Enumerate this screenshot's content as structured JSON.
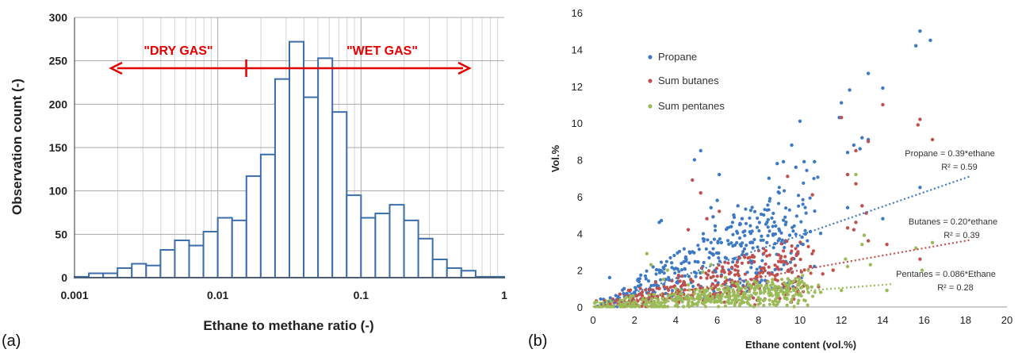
{
  "chart_data": [
    {
      "type": "bar",
      "panel_label": "(a)",
      "xlabel": "Ethane to methane ratio (-)",
      "ylabel": "Observation count (-)",
      "xscale": "log",
      "xlim": [
        0.001,
        1
      ],
      "ylim": [
        0,
        300
      ],
      "x_ticks": [
        0.001,
        0.01,
        0.1,
        1
      ],
      "x_tick_labels": [
        "0.001",
        "0.01",
        "0.1",
        "1"
      ],
      "y_ticks": [
        0,
        50,
        100,
        150,
        200,
        250,
        300
      ],
      "y_tick_labels": [
        "0",
        "50",
        "100",
        "150",
        "200",
        "250",
        "300"
      ],
      "grid": true,
      "bin_edges": [
        0.001,
        0.0012589,
        0.0015849,
        0.0019953,
        0.0025119,
        0.0031623,
        0.0039811,
        0.0050119,
        0.0063096,
        0.0079433,
        0.01,
        0.012589,
        0.015849,
        0.019953,
        0.025119,
        0.031623,
        0.039811,
        0.050119,
        0.063096,
        0.079433,
        0.1,
        0.12589,
        0.15849,
        0.19953,
        0.25119,
        0.31623,
        0.39811,
        0.50119,
        0.63096,
        0.79433,
        1.0
      ],
      "values": [
        1,
        5,
        5,
        11,
        16,
        14,
        32,
        43,
        37,
        53,
        69,
        66,
        117,
        142,
        229,
        272,
        208,
        253,
        191,
        95,
        69,
        74,
        84,
        66,
        45,
        21,
        11,
        8,
        1,
        1
      ],
      "bar_color": "#3b6ea8",
      "annotations": [
        {
          "text": "\"DRY GAS\"",
          "direction": "left",
          "color": "#e30000"
        },
        {
          "text": "\"WET GAS\"",
          "direction": "right",
          "color": "#e30000"
        }
      ],
      "divider_x": 0.0158
    },
    {
      "type": "scatter",
      "panel_label": "(b)",
      "xlabel": "Ethane content (vol.%)",
      "ylabel": "Vol.%",
      "xlim": [
        0,
        20
      ],
      "ylim": [
        0,
        16
      ],
      "x_ticks": [
        0,
        2,
        4,
        6,
        8,
        10,
        12,
        14,
        16,
        18,
        20
      ],
      "x_tick_labels": [
        "0",
        "2",
        "4",
        "6",
        "8",
        "10",
        "12",
        "14",
        "16",
        "18",
        "20"
      ],
      "y_ticks": [
        0,
        2,
        4,
        6,
        8,
        10,
        12,
        14,
        16
      ],
      "y_tick_labels": [
        "0",
        "2",
        "4",
        "6",
        "8",
        "10",
        "12",
        "14",
        "16"
      ],
      "grid": false,
      "legend_placement": "top-left",
      "series": [
        {
          "name": "Propane",
          "color": "#3e79c4",
          "points": [
            [
              15.8,
              15.0
            ],
            [
              16.3,
              14.5
            ],
            [
              15.6,
              14.2
            ],
            [
              14.0,
              11.9
            ],
            [
              13.3,
              12.7
            ],
            [
              12.0,
              11.1
            ],
            [
              12.4,
              11.8
            ],
            [
              11.9,
              10.3
            ],
            [
              10.0,
              10.1
            ],
            [
              9.6,
              8.8
            ],
            [
              12.6,
              8.8
            ],
            [
              12.9,
              8.6
            ],
            [
              12.3,
              8.4
            ],
            [
              13.0,
              9.2
            ],
            [
              13.3,
              9.1
            ],
            [
              10.2,
              7.9
            ],
            [
              10.7,
              7.9
            ],
            [
              9.2,
              7.9
            ],
            [
              9.8,
              7.6
            ],
            [
              8.9,
              7.8
            ],
            [
              8.5,
              7.0
            ],
            [
              5.2,
              8.5
            ],
            [
              4.9,
              8.0
            ],
            [
              6.1,
              7.2
            ],
            [
              6.0,
              5.8
            ],
            [
              5.7,
              5.4
            ],
            [
              6.8,
              5.0
            ],
            [
              7.2,
              4.8
            ],
            [
              3.2,
              4.6
            ],
            [
              3.3,
              4.7
            ],
            [
              5.8,
              4.9
            ],
            [
              9.0,
              3.7
            ],
            [
              9.5,
              3.9
            ],
            [
              10.5,
              4.1
            ],
            [
              8.4,
              3.5
            ],
            [
              8.7,
              3.9
            ],
            [
              10.1,
              3.8
            ],
            [
              7.6,
              3.5
            ],
            [
              15.8,
              6.5
            ],
            [
              14.0,
              4.8
            ],
            [
              12.3,
              5.4
            ],
            [
              11.0,
              4.0
            ],
            [
              7.0,
              5.5
            ],
            [
              6.5,
              4.3
            ],
            [
              4.5,
              2.6
            ],
            [
              4.0,
              2.1
            ],
            [
              3.5,
              1.5
            ],
            [
              2.3,
              1.2
            ],
            [
              1.5,
              1.0
            ],
            [
              0.8,
              1.6
            ],
            [
              2.0,
              0.8
            ],
            [
              3.8,
              2.4
            ],
            [
              5.3,
              2.2
            ],
            [
              5.9,
              4.4
            ],
            [
              4.8,
              3.0
            ],
            [
              6.2,
              3.5
            ],
            [
              9.9,
              2.9
            ],
            [
              10.7,
              2.2
            ]
          ],
          "trendline": {
            "slope": 0.39,
            "x_range": [
              0,
              18.2
            ],
            "label": "Propane = 0.39*ethane",
            "r2_label": "R² = 0.59"
          }
        },
        {
          "name": "Sum butanes",
          "color": "#c0504d",
          "points": [
            [
              15.8,
              10.2
            ],
            [
              15.7,
              9.9
            ],
            [
              16.4,
              9.1
            ],
            [
              14.0,
              11.0
            ],
            [
              12.0,
              10.3
            ],
            [
              12.7,
              8.5
            ],
            [
              13.3,
              9.0
            ],
            [
              12.3,
              7.2
            ],
            [
              12.7,
              6.7
            ],
            [
              9.4,
              7.1
            ],
            [
              10.6,
              6.1
            ],
            [
              4.8,
              6.9
            ],
            [
              5.2,
              6.2
            ],
            [
              6.1,
              5.2
            ],
            [
              4.6,
              4.2
            ],
            [
              5.5,
              4.8
            ],
            [
              9.9,
              3.0
            ],
            [
              9.6,
              2.6
            ],
            [
              10.5,
              2.2
            ],
            [
              12.3,
              4.3
            ],
            [
              12.7,
              4.6
            ],
            [
              13.0,
              5.5
            ],
            [
              13.2,
              5.1
            ],
            [
              12.6,
              4.2
            ],
            [
              14.2,
              3.4
            ],
            [
              15.8,
              2.6
            ],
            [
              11.1,
              1.8
            ],
            [
              9.5,
              1.0
            ],
            [
              8.8,
              1.5
            ],
            [
              7.0,
              1.8
            ],
            [
              6.3,
              2.0
            ],
            [
              5.7,
              1.6
            ],
            [
              4.2,
              1.4
            ],
            [
              3.2,
              1.0
            ],
            [
              2.1,
              0.6
            ],
            [
              1.2,
              0.4
            ],
            [
              1.3,
              0.7
            ],
            [
              10.9,
              1.1
            ],
            [
              11.6,
              2.0
            ],
            [
              13.3,
              3.6
            ]
          ],
          "trendline": {
            "slope": 0.2,
            "x_range": [
              0,
              18.2
            ],
            "label": "Butanes = 0.20*ethane",
            "r2_label": "R² = 0.39"
          }
        },
        {
          "name": "Sum pentanes",
          "color": "#9bbb59",
          "points": [
            [
              12.7,
              7.2
            ],
            [
              13.1,
              3.9
            ],
            [
              13.0,
              3.4
            ],
            [
              12.2,
              2.6
            ],
            [
              12.3,
              2.2
            ],
            [
              13.4,
              2.3
            ],
            [
              15.6,
              3.2
            ],
            [
              16.4,
              3.5
            ],
            [
              15.9,
              2.0
            ],
            [
              14.2,
              0.9
            ],
            [
              10.4,
              2.0
            ],
            [
              10.0,
              1.3
            ],
            [
              9.2,
              0.8
            ],
            [
              7.8,
              1.4
            ],
            [
              7.0,
              1.3
            ],
            [
              6.4,
              1.6
            ],
            [
              5.7,
              2.3
            ],
            [
              5.3,
              1.9
            ],
            [
              4.6,
              1.2
            ],
            [
              4.0,
              1.0
            ],
            [
              3.6,
              2.0
            ],
            [
              2.6,
              2.9
            ],
            [
              2.8,
              2.3
            ],
            [
              3.4,
              1.5
            ],
            [
              1.8,
              0.5
            ],
            [
              0.9,
              0.3
            ],
            [
              0.5,
              0.2
            ],
            [
              8.3,
              0.4
            ],
            [
              9.7,
              0.6
            ],
            [
              11.0,
              0.8
            ],
            [
              12.0,
              0.9
            ],
            [
              6.6,
              0.6
            ]
          ],
          "trendline": {
            "slope": 0.086,
            "x_range": [
              0,
              14.5
            ],
            "label": "Pentanes = 0.086*Ethane",
            "r2_label": "R² = 0.28"
          }
        }
      ]
    }
  ]
}
